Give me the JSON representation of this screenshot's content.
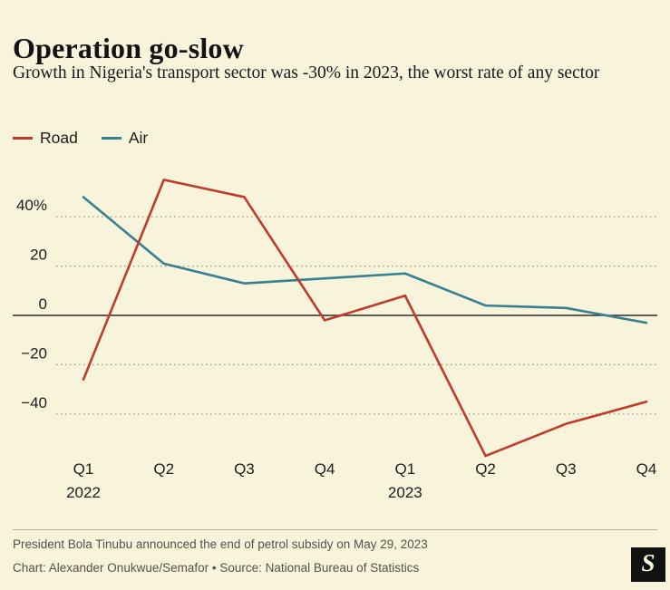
{
  "chart_data": {
    "type": "line",
    "title": "Operation go-slow",
    "subtitle": "Growth in Nigeria's transport sector was -30% in 2023, the worst rate of any sector",
    "categories": [
      "Q1 2022",
      "Q2 2022",
      "Q3 2022",
      "Q4 2022",
      "Q1 2023",
      "Q2 2023",
      "Q3 2023",
      "Q4 2023"
    ],
    "x_ticks": [
      {
        "label": "Q1",
        "year": "2022"
      },
      {
        "label": "Q2"
      },
      {
        "label": "Q3"
      },
      {
        "label": "Q4"
      },
      {
        "label": "Q1",
        "year": "2023"
      },
      {
        "label": "Q2"
      },
      {
        "label": "Q3"
      },
      {
        "label": "Q4"
      }
    ],
    "y_ticks": [
      {
        "value": 40,
        "label": "40%"
      },
      {
        "value": 20,
        "label": "20"
      },
      {
        "value": 0,
        "label": "0"
      },
      {
        "value": -20,
        "label": "−20"
      },
      {
        "value": -40,
        "label": "−40"
      }
    ],
    "ylim": [
      -62,
      58
    ],
    "grid": "horizontal-dotted",
    "zero_line": true,
    "legend_position": "top-left",
    "series": [
      {
        "name": "Road",
        "color": "#bf3a2b",
        "values": [
          -26,
          55,
          48,
          -2,
          8,
          -57,
          -44,
          -35
        ]
      },
      {
        "name": "Air",
        "color": "#37808f",
        "values": [
          48,
          21,
          13,
          15,
          17,
          4,
          3,
          -3
        ]
      }
    ]
  },
  "footer": {
    "note": "President Bola Tinubu announced the end of petrol subsidy on May 29, 2023",
    "credit": "Chart: Alexander Onukwue/Semafor • Source: National Bureau of Statistics",
    "logo_letter": "S"
  },
  "colors": {
    "background": "#f8f3db",
    "road": "#bf3a2b",
    "air": "#37808f"
  }
}
